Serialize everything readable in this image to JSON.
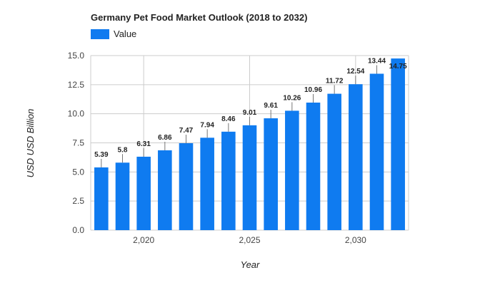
{
  "chart_data": {
    "type": "bar",
    "title": "Germany Pet Food Market Outlook (2018 to 2032)",
    "xlabel": "Year",
    "ylabel": "USD USD Billion",
    "x": [
      2018,
      2019,
      2020,
      2021,
      2022,
      2023,
      2024,
      2025,
      2026,
      2027,
      2028,
      2029,
      2030,
      2031,
      2032
    ],
    "series": [
      {
        "name": "Value",
        "values": [
          5.39,
          5.8,
          6.31,
          6.86,
          7.47,
          7.94,
          8.46,
          9.01,
          9.61,
          10.26,
          10.96,
          11.72,
          12.54,
          13.44,
          14.75
        ],
        "color": "#0f7bf0"
      }
    ],
    "data_labels": [
      "5.39",
      "5.8",
      "6.31",
      "6.86",
      "7.47",
      "7.94",
      "8.46",
      "9.01",
      "9.61",
      "10.26",
      "10.96",
      "11.72",
      "12.54",
      "13.44",
      "14.75"
    ],
    "ylim": [
      0,
      15
    ],
    "yticks": [
      0,
      2.5,
      5,
      7.5,
      10,
      12.5,
      15
    ],
    "ytick_labels": [
      "0.0",
      "2.5",
      "5.0",
      "7.5",
      "10.0",
      "12.5",
      "15.0"
    ],
    "xticks": [
      2020,
      2025,
      2030
    ],
    "xtick_labels": [
      "2,020",
      "2,025",
      "2,030"
    ],
    "xlim": [
      2017.5,
      2032.5
    ],
    "grid": true,
    "legend_position": "top-left"
  }
}
